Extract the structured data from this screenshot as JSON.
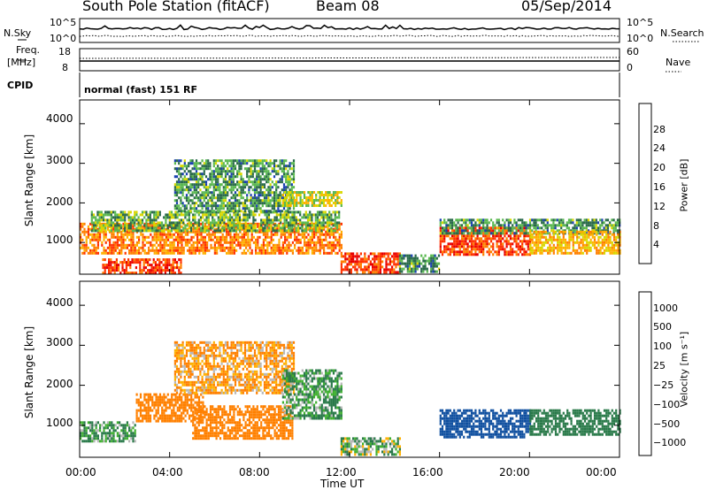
{
  "header": {
    "station": "South Pole Station (fitACF)",
    "beam": "Beam 08",
    "date": "05/Sep/2014"
  },
  "sky_panel": {
    "left_label": "N.Sky",
    "left_ticks": [
      "10^5",
      "10^0"
    ],
    "right_label": "N.Search",
    "right_ticks": [
      "10^5",
      "10^0"
    ]
  },
  "freq_panel": {
    "left_label_1": "Freq.",
    "left_label_2": "[MHz]",
    "left_ticks": [
      "18",
      "8"
    ],
    "right_label": "Nave",
    "right_ticks": [
      "60",
      "0"
    ],
    "cpid_label": "CPID",
    "mode_text": "normal (fast) 151 RF"
  },
  "power_panel": {
    "ylabel": "Slant Range [km]",
    "colorbar_label": "Power [dB]",
    "colorbar_ticks": [
      "28",
      "24",
      "20",
      "16",
      "12",
      "8",
      "4"
    ],
    "colorbar_colors": [
      "#e80000",
      "#ff3200",
      "#ff7f00",
      "#ffb000",
      "#d8d800",
      "#5ab850",
      "#2a6a4a",
      "#1a40b0",
      "#0000ff"
    ]
  },
  "velocity_panel": {
    "ylabel": "Slant Range [km]",
    "colorbar_label": "Velocity [m s⁻¹]",
    "colorbar_ticks": [
      "1000",
      "500",
      "100",
      "25",
      "−25",
      "−100",
      "−500",
      "−1000"
    ],
    "colorbar_colors": [
      "#1020d0",
      "#1050a0",
      "#2a7a4a",
      "#40b030",
      "#b8b8b8",
      "#ffb000",
      "#ff8000",
      "#ff4000",
      "#e00000"
    ]
  },
  "x_axis": {
    "label": "Time UT",
    "ticks": [
      "00:00",
      "04:00",
      "08:00",
      "12:00",
      "16:00",
      "20:00",
      "00:00"
    ]
  },
  "chart_data": [
    {
      "type": "heatmap",
      "name": "power",
      "ylabel": "Slant Range [km]",
      "x_range_hours": [
        0,
        24
      ],
      "y_range_km": [
        200,
        4600
      ],
      "y_ticks": [
        1000,
        2000,
        3000,
        4000
      ],
      "colorbar_range_dB": [
        0,
        32
      ],
      "regions": [
        {
          "t0": 0.0,
          "t1": 11.6,
          "r0": 700,
          "r1": 1500,
          "v": 22
        },
        {
          "t0": 0.5,
          "t1": 11.5,
          "r0": 1300,
          "r1": 1800,
          "v": 10
        },
        {
          "t0": 4.2,
          "t1": 9.5,
          "r0": 1800,
          "r1": 3100,
          "v": 8
        },
        {
          "t0": 9.0,
          "t1": 11.6,
          "r0": 1900,
          "r1": 2300,
          "v": 14
        },
        {
          "t0": 1.0,
          "t1": 4.5,
          "r0": 200,
          "r1": 600,
          "v": 26
        },
        {
          "t0": 11.6,
          "t1": 14.2,
          "r0": 250,
          "r1": 750,
          "v": 26
        },
        {
          "t0": 14.2,
          "t1": 16.0,
          "r0": 250,
          "r1": 700,
          "v": 8
        },
        {
          "t0": 16.0,
          "t1": 20.0,
          "r0": 700,
          "r1": 1400,
          "v": 26
        },
        {
          "t0": 16.0,
          "t1": 24.0,
          "r0": 1200,
          "r1": 1600,
          "v": 8
        },
        {
          "t0": 20.0,
          "t1": 24.0,
          "r0": 700,
          "r1": 1300,
          "v": 18
        }
      ]
    },
    {
      "type": "heatmap",
      "name": "velocity",
      "ylabel": "Slant Range [km]",
      "x_range_hours": [
        0,
        24
      ],
      "y_range_km": [
        200,
        4600
      ],
      "y_ticks": [
        1000,
        2000,
        3000,
        4000
      ],
      "colorbar_range": [
        -1000,
        1000
      ],
      "regions": [
        {
          "t0": 0.0,
          "t1": 2.5,
          "r0": 600,
          "r1": 1100,
          "v": 100
        },
        {
          "t0": 2.5,
          "t1": 5.5,
          "r0": 1100,
          "r1": 1800,
          "v": -300
        },
        {
          "t0": 5.0,
          "t1": 9.5,
          "r0": 700,
          "r1": 1500,
          "v": -300
        },
        {
          "t0": 4.2,
          "t1": 9.5,
          "r0": 1800,
          "r1": 3100,
          "v": -100
        },
        {
          "t0": 9.0,
          "t1": 11.6,
          "r0": 1200,
          "r1": 2400,
          "v": 100
        },
        {
          "t0": 11.6,
          "t1": 14.2,
          "r0": 300,
          "r1": 700,
          "v": 50
        },
        {
          "t0": 16.0,
          "t1": 20.0,
          "r0": 700,
          "r1": 1400,
          "v": 800
        },
        {
          "t0": 20.0,
          "t1": 24.0,
          "r0": 800,
          "r1": 1400,
          "v": 300
        }
      ]
    }
  ]
}
